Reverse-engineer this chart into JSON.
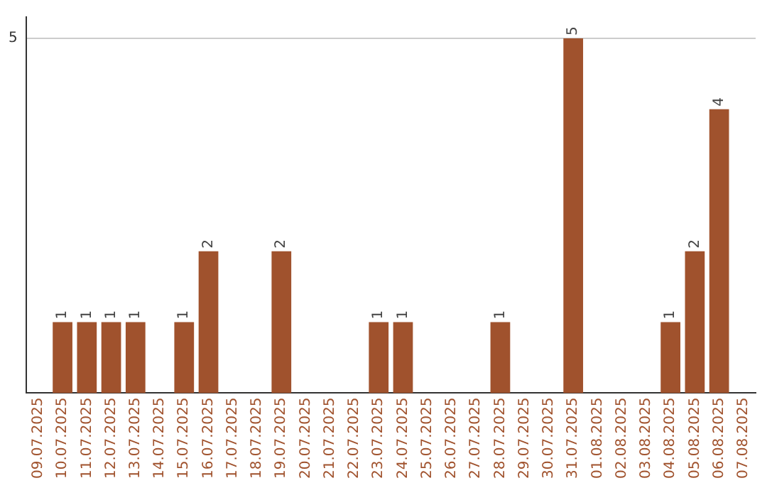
{
  "chart_data": {
    "type": "bar",
    "categories": [
      "09.07.2025",
      "10.07.2025",
      "11.07.2025",
      "12.07.2025",
      "13.07.2025",
      "14.07.2025",
      "15.07.2025",
      "16.07.2025",
      "17.07.2025",
      "18.07.2025",
      "19.07.2025",
      "20.07.2025",
      "21.07.2025",
      "22.07.2025",
      "23.07.2025",
      "24.07.2025",
      "25.07.2025",
      "26.07.2025",
      "27.07.2025",
      "28.07.2025",
      "29.07.2025",
      "30.07.2025",
      "31.07.2025",
      "01.08.2025",
      "02.08.2025",
      "03.08.2025",
      "04.08.2025",
      "05.08.2025",
      "06.08.2025",
      "07.08.2025"
    ],
    "values": [
      null,
      1,
      1,
      1,
      1,
      null,
      1,
      2,
      null,
      null,
      2,
      null,
      null,
      null,
      1,
      1,
      null,
      null,
      null,
      1,
      null,
      null,
      5,
      null,
      null,
      null,
      1,
      2,
      4,
      null
    ],
    "color": "#a0522d",
    "ylim": [
      0,
      5.3
    ],
    "yticks": [
      5
    ],
    "grid": "y",
    "data_labels": true,
    "legend": false
  }
}
